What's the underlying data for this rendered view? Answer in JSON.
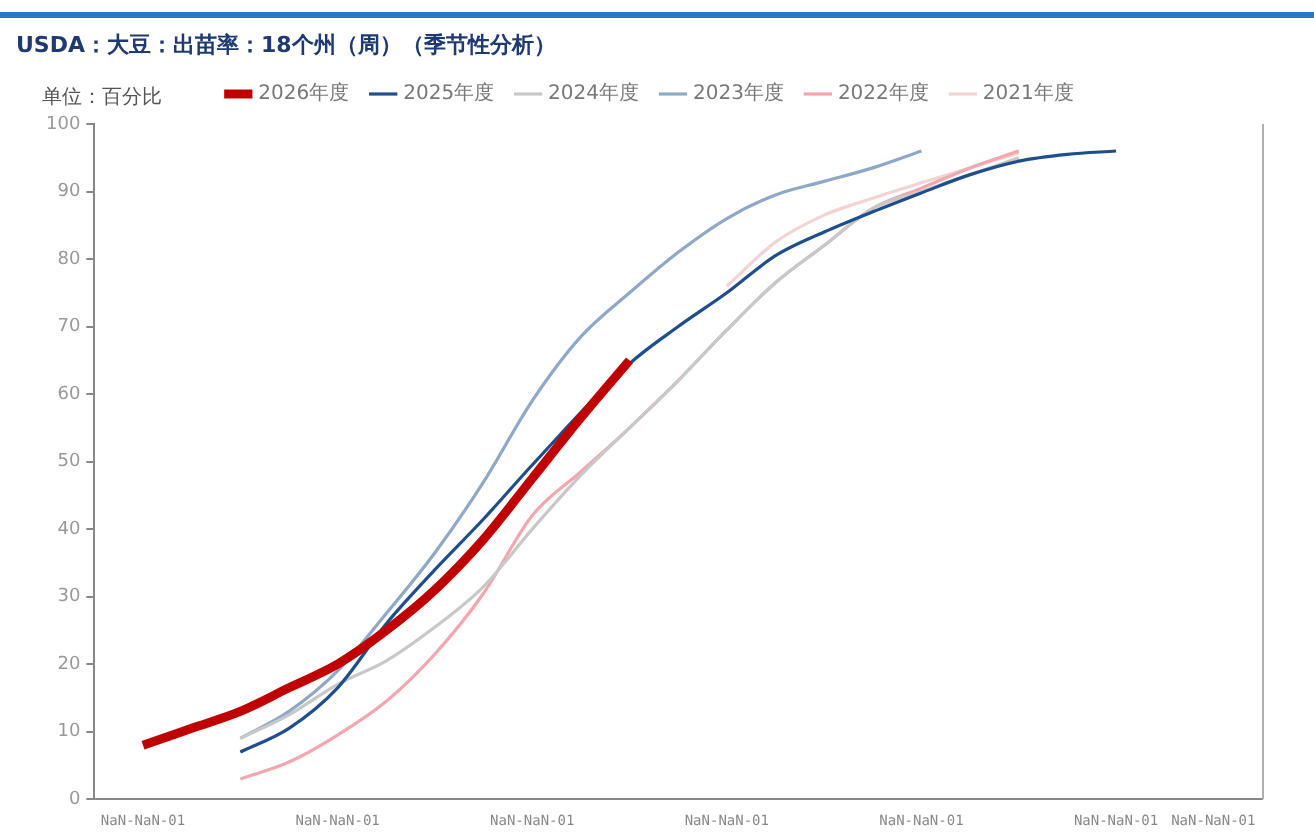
{
  "chart_data": {
    "type": "line",
    "title": "USDA：大豆：出苗率：18个州（周）（季节性分析）",
    "ylabel": "单位：百分比",
    "categories": [
      null,
      "NaN-NaN-01",
      null,
      null,
      null,
      "NaN-NaN-01",
      null,
      null,
      null,
      "NaN-NaN-01",
      null,
      null,
      null,
      "NaN-NaN-01",
      null,
      null,
      null,
      "NaN-NaN-01",
      null,
      null,
      null,
      "NaN-NaN-01",
      null,
      "NaN-NaN-01",
      null
    ],
    "ylim": [
      0,
      100
    ],
    "yticks": [
      0,
      10,
      20,
      30,
      40,
      50,
      60,
      70,
      80,
      90,
      100
    ],
    "grid": false,
    "legend": "top",
    "marker": "none",
    "line_style": "solid",
    "series": [
      {
        "name": "2026年度",
        "color": "#c00000",
        "values": [
          null,
          8,
          10.5,
          13,
          16.5,
          20,
          25,
          31,
          38.5,
          47.5,
          56.5,
          65,
          null,
          null,
          null,
          null,
          null,
          null,
          null,
          null,
          null,
          null,
          null,
          null,
          null
        ]
      },
      {
        "name": "2025年度",
        "color": "#1f4e8c",
        "values": [
          null,
          null,
          null,
          7,
          10.5,
          16.5,
          26,
          34,
          41.5,
          49.5,
          null,
          64.5,
          70,
          75,
          80.5,
          84,
          87,
          89.8,
          92.5,
          94.5,
          95.5,
          96,
          null,
          null,
          null
        ]
      },
      {
        "name": "2024年度",
        "color": "#c8c8c8",
        "values": [
          null,
          null,
          null,
          9,
          12.5,
          17,
          20.5,
          25.5,
          31.5,
          40,
          48,
          55,
          62,
          69.5,
          76.5,
          82,
          87.5,
          90,
          92.5,
          95,
          null,
          null,
          null,
          null,
          null
        ]
      },
      {
        "name": "2023年度",
        "color": "#8fa8c8",
        "values": [
          null,
          null,
          null,
          9,
          13,
          19,
          27.5,
          36.5,
          47,
          59,
          68.5,
          75,
          81,
          86,
          89.5,
          91.5,
          93.5,
          96,
          null,
          null,
          null,
          null,
          null,
          null,
          null
        ]
      },
      {
        "name": "2022年度",
        "color": "#f4a6ae",
        "values": [
          null,
          null,
          null,
          3,
          5.5,
          9.5,
          14.5,
          21.5,
          30.5,
          42,
          48.5,
          55,
          62,
          69.5,
          76.5,
          82,
          87.5,
          90.5,
          93.5,
          96,
          null,
          null,
          null,
          null,
          null
        ]
      },
      {
        "name": "2021年度",
        "color": "#f2d4d4",
        "values": [
          null,
          null,
          null,
          null,
          null,
          null,
          null,
          null,
          null,
          null,
          null,
          null,
          null,
          76,
          82.5,
          86.5,
          89,
          91.3,
          93.5,
          95.7,
          null,
          null,
          null,
          null,
          null
        ]
      }
    ]
  }
}
